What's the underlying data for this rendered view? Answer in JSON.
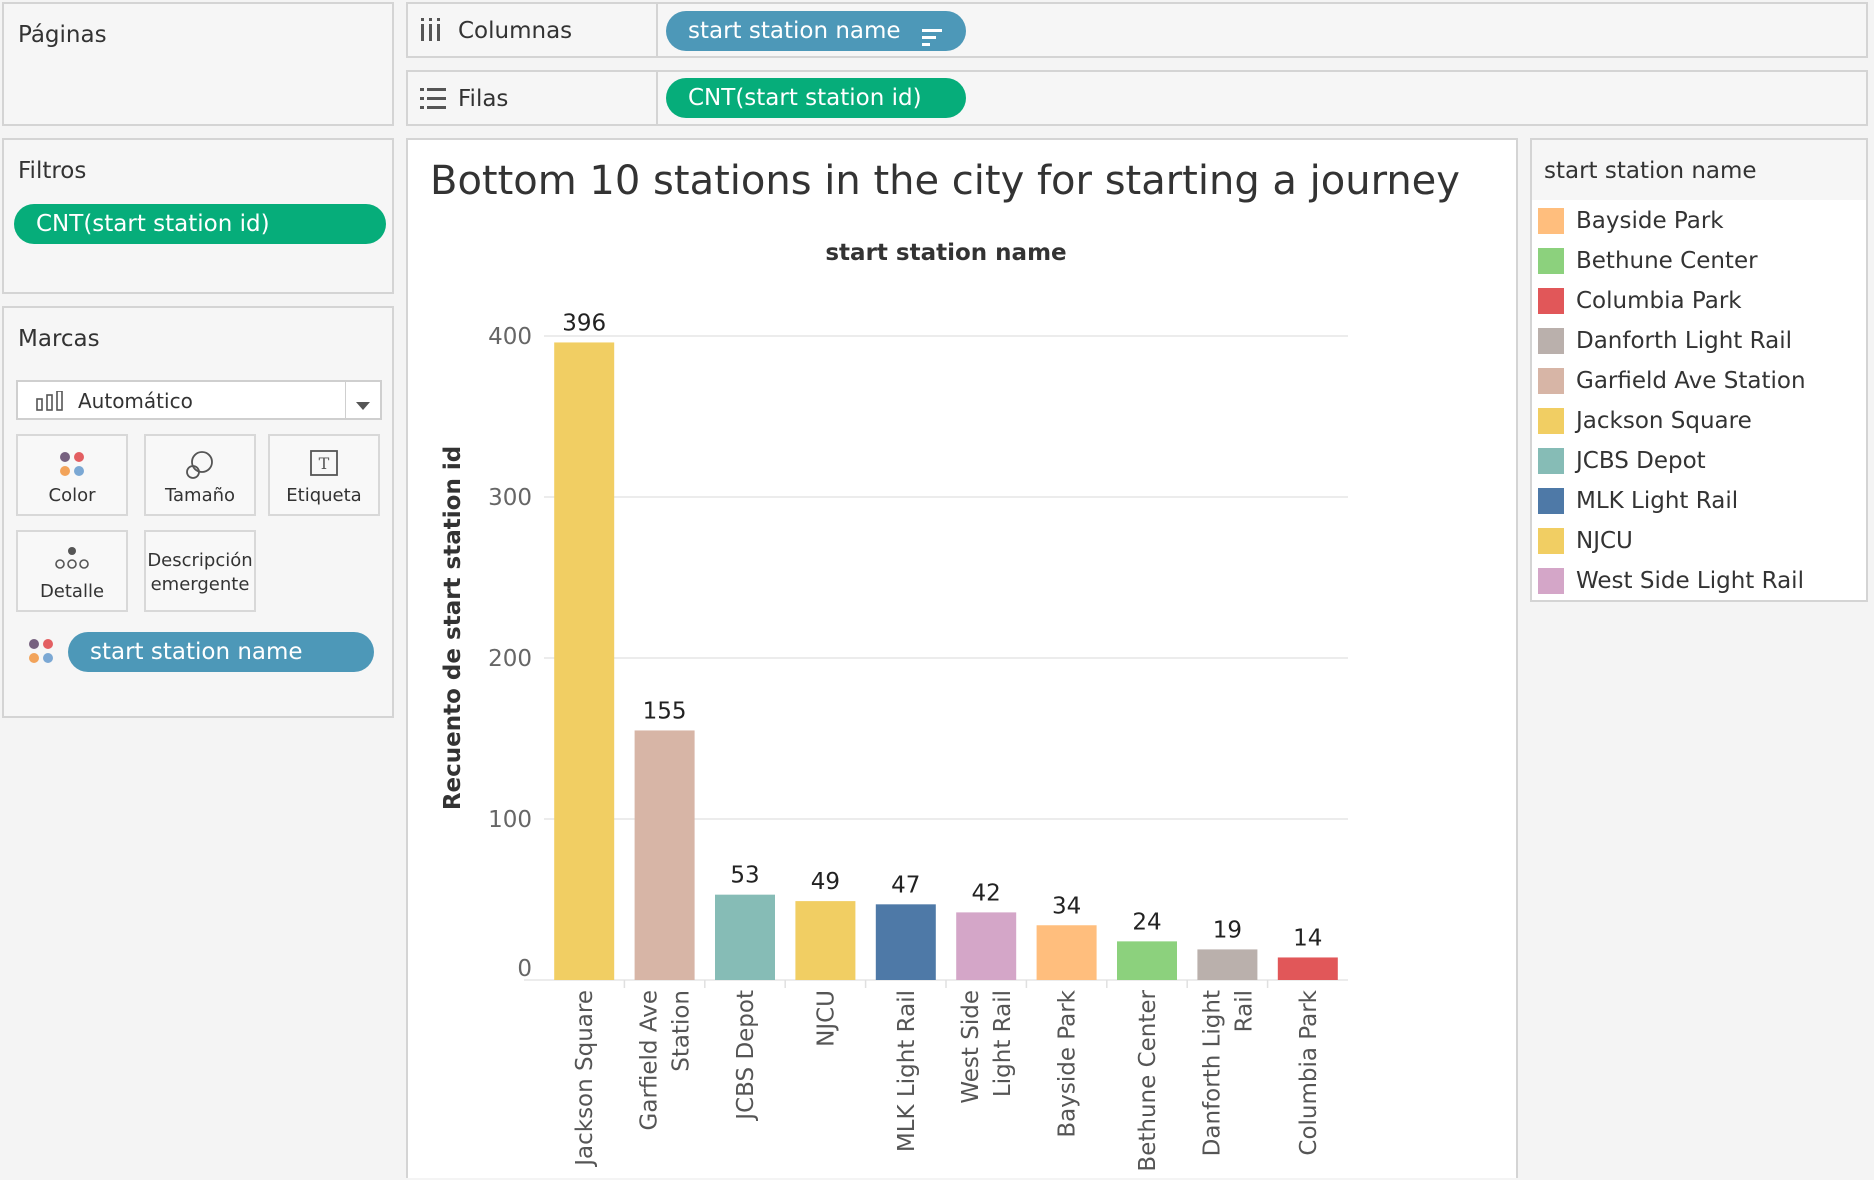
{
  "pages": {
    "title": "Páginas"
  },
  "columns_shelf": {
    "label": "Columnas",
    "pill": "start station name"
  },
  "rows_shelf": {
    "label": "Filas",
    "pill": "CNT(start station id)"
  },
  "filters": {
    "title": "Filtros",
    "pill": "CNT(start station id)"
  },
  "marks": {
    "title": "Marcas",
    "type_select": "Automático",
    "buttons": {
      "color": "Color",
      "size": "Tamaño",
      "label": "Etiqueta",
      "detail": "Detalle",
      "tooltip_line1": "Descripción",
      "tooltip_line2": "emergente"
    },
    "field_pill": "start station name"
  },
  "legend": {
    "title": "start station name",
    "items": [
      {
        "name": "Bayside Park",
        "color": "#ffbe7d"
      },
      {
        "name": "Bethune Center",
        "color": "#8cd17d"
      },
      {
        "name": "Columbia Park",
        "color": "#e15759"
      },
      {
        "name": "Danforth Light Rail",
        "color": "#bab0ac"
      },
      {
        "name": "Garfield Ave Station",
        "color": "#d7b5a6"
      },
      {
        "name": "Jackson Square",
        "color": "#f1ce63"
      },
      {
        "name": "JCBS Depot",
        "color": "#86bcb6"
      },
      {
        "name": "MLK Light Rail",
        "color": "#4e79a7"
      },
      {
        "name": "NJCU",
        "color": "#f1ce63"
      },
      {
        "name": "West Side Light Rail",
        "color": "#d4a6c8"
      }
    ]
  },
  "chart_data": {
    "type": "bar",
    "title": "Bottom 10 stations in the city for starting a journey",
    "xlabel": "start station name",
    "ylabel": "Recuento de start station id",
    "ylim": [
      0,
      430
    ],
    "yticks": [
      0,
      100,
      200,
      300,
      400
    ],
    "grid": true,
    "categories": [
      {
        "lines": [
          "Jackson Square"
        ]
      },
      {
        "lines": [
          "Garfield Ave",
          "Station"
        ]
      },
      {
        "lines": [
          "JCBS Depot"
        ]
      },
      {
        "lines": [
          "NJCU"
        ]
      },
      {
        "lines": [
          "MLK Light Rail"
        ]
      },
      {
        "lines": [
          "West Side",
          "Light Rail"
        ]
      },
      {
        "lines": [
          "Bayside Park"
        ]
      },
      {
        "lines": [
          "Bethune Center"
        ]
      },
      {
        "lines": [
          "Danforth Light",
          "Rail"
        ]
      },
      {
        "lines": [
          "Columbia Park"
        ]
      }
    ],
    "values": [
      396,
      155,
      53,
      49,
      47,
      42,
      34,
      24,
      19,
      14
    ],
    "colors": [
      "#f1ce63",
      "#d7b5a6",
      "#86bcb6",
      "#f1ce63",
      "#4e79a7",
      "#d4a6c8",
      "#ffbe7d",
      "#8cd17d",
      "#bab0ac",
      "#e15759"
    ]
  }
}
